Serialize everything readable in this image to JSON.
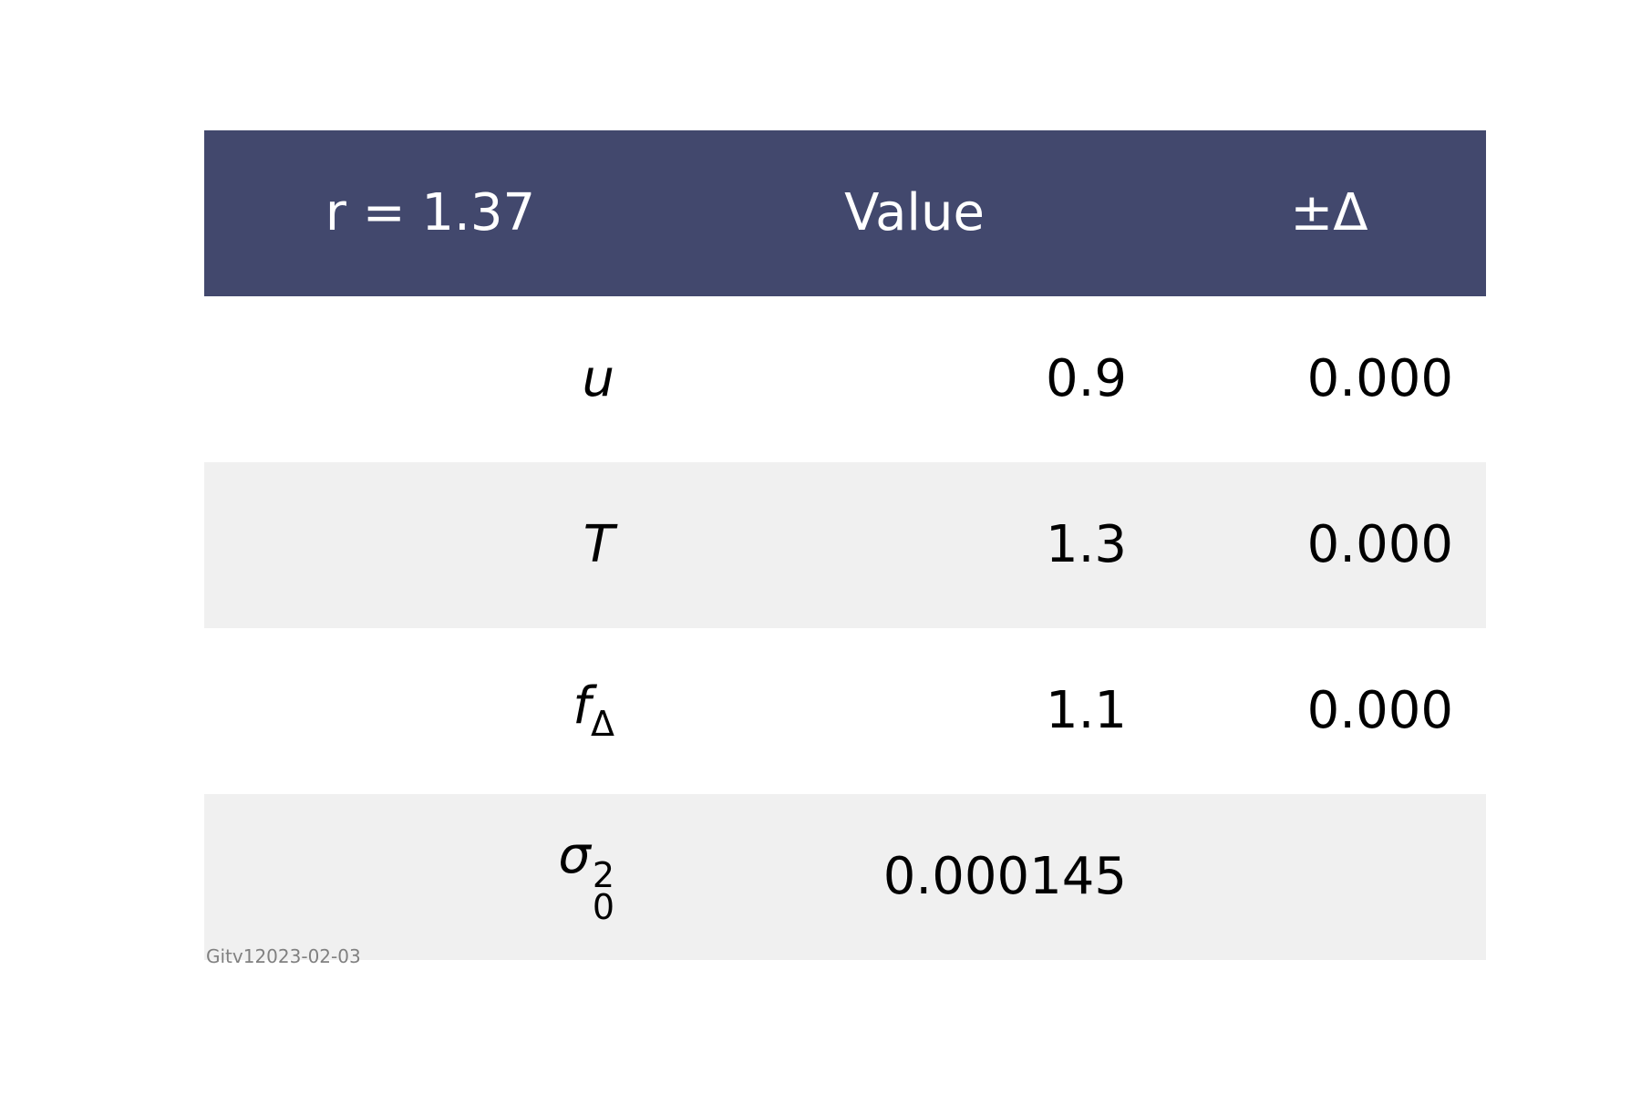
{
  "header": {
    "col1": "r = 1.37",
    "col2": "Value",
    "col3": "±Δ"
  },
  "rows": [
    {
      "symbol": "u",
      "value": "0.9",
      "delta": "0.000"
    },
    {
      "symbol": "T",
      "value": "1.3",
      "delta": "0.000"
    },
    {
      "symbol": "f",
      "subscript": "Δ",
      "value": "1.1",
      "delta": "0.000"
    },
    {
      "symbol": "σ",
      "superscript": "2",
      "subscript": "0",
      "value": "0.000145",
      "delta": ""
    }
  ],
  "footer_stamp": "Gitv12023-02-03",
  "colors": {
    "header_bg": "#42486d",
    "header_text": "#ffffff",
    "alt_row_bg": "#f0f0f0",
    "stamp_text": "#808080"
  }
}
